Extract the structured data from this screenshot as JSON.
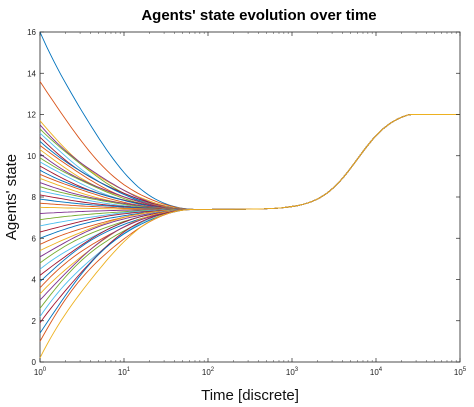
{
  "chart_data": {
    "type": "line",
    "title": "Agents' state evolution over time",
    "xlabel": "Time [discrete]",
    "ylabel": "Agents' state",
    "x_scale": "log",
    "xlim": [
      1,
      100000
    ],
    "ylim": [
      0,
      16
    ],
    "x_ticks": [
      {
        "base": "10",
        "exp": "0",
        "value": 1
      },
      {
        "base": "10",
        "exp": "1",
        "value": 10
      },
      {
        "base": "10",
        "exp": "2",
        "value": 100
      },
      {
        "base": "10",
        "exp": "3",
        "value": 1000
      },
      {
        "base": "10",
        "exp": "4",
        "value": 10000
      },
      {
        "base": "10",
        "exp": "5",
        "value": 100000
      }
    ],
    "y_ticks": [
      "0",
      "2",
      "4",
      "6",
      "8",
      "10",
      "12",
      "14",
      "16"
    ],
    "grid": false,
    "legend": "none",
    "consensus_value": 7.4,
    "consensus_reached_at": 70,
    "final_value": 12,
    "final_reached_at": 25000,
    "initial_states": [
      16.0,
      13.6,
      11.7,
      11.5,
      11.3,
      11.1,
      10.9,
      10.7,
      10.5,
      10.3,
      10.1,
      9.9,
      9.7,
      9.5,
      9.3,
      9.1,
      8.9,
      8.7,
      8.5,
      8.3,
      8.1,
      7.9,
      7.7,
      7.5,
      7.2,
      6.9,
      6.6,
      6.3,
      6.0,
      5.7,
      5.4,
      5.1,
      4.8,
      4.5,
      4.2,
      3.9,
      3.6,
      3.3,
      3.0,
      2.6,
      2.2,
      1.9,
      1.4,
      1.0,
      0.2
    ],
    "series_colors": [
      "#0072BD",
      "#D95319",
      "#EDB120",
      "#7E2F8E",
      "#77AC30",
      "#4DBEEE",
      "#A2142F"
    ]
  }
}
